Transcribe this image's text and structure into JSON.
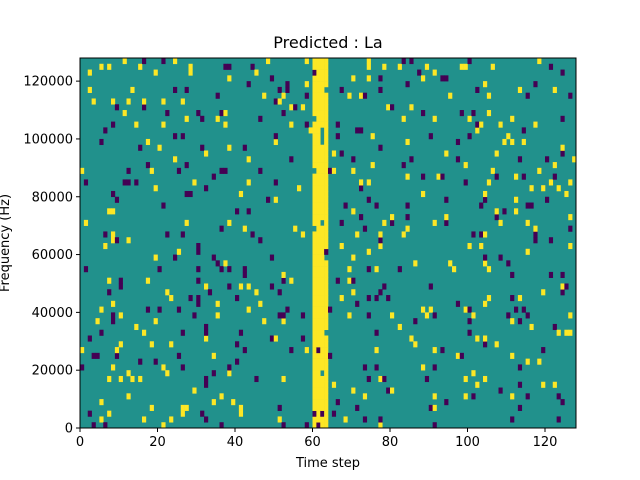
{
  "chart_data": {
    "type": "heatmap",
    "title": "Predicted : La",
    "xlabel": "Time step",
    "ylabel": "Frequency (Hz)",
    "xlim": [
      0,
      128
    ],
    "ylim": [
      0,
      128000
    ],
    "xticks": [
      0,
      20,
      40,
      60,
      80,
      100,
      120
    ],
    "yticks": [
      0,
      20000,
      40000,
      60000,
      80000,
      100000,
      120000
    ],
    "colors": {
      "background": "#21918c",
      "high": "#fde725",
      "low": "#440154"
    },
    "columns": 128,
    "rows": 64,
    "band": {
      "center": 61.5,
      "halfwidth": 2,
      "density": 0.92
    },
    "cells_high_density": 0.035,
    "cells_low_density": 0.035
  }
}
